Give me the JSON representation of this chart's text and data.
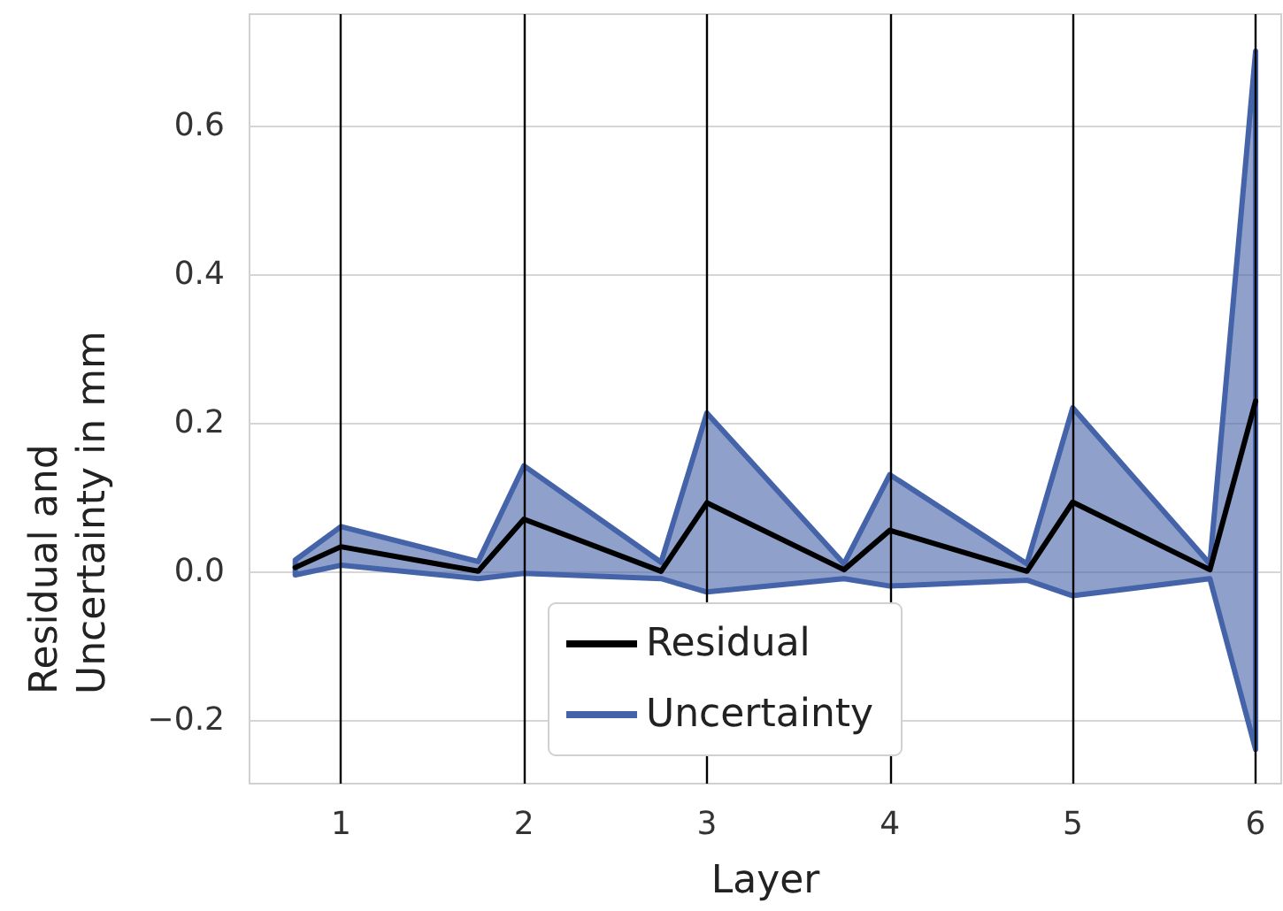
{
  "chart_data": {
    "type": "line",
    "xlabel": "Layer",
    "ylabel": "Residual and Uncertainty in mm",
    "x": [
      0.75,
      1,
      1.75,
      2,
      2.75,
      3,
      3.75,
      4,
      4.75,
      5,
      5.75,
      6
    ],
    "series": [
      {
        "name": "Residual",
        "color": "#000000",
        "values": [
          0.005,
          0.033,
          0.0,
          0.07,
          0.0,
          0.092,
          0.002,
          0.055,
          0.0,
          0.093,
          0.002,
          0.229
        ]
      },
      {
        "name": "Uncertainty",
        "type": "area",
        "color": "#4463a8",
        "values": [
          null,
          null,
          null,
          null,
          null,
          null,
          null,
          null,
          null,
          null,
          null,
          null
        ],
        "upper": [
          0.015,
          0.06,
          0.013,
          0.142,
          0.012,
          0.213,
          0.01,
          0.13,
          0.01,
          0.22,
          0.01,
          0.7
        ],
        "lower": [
          -0.005,
          0.008,
          -0.01,
          -0.003,
          -0.01,
          -0.028,
          -0.01,
          -0.02,
          -0.012,
          -0.033,
          -0.01,
          -0.24
        ]
      }
    ],
    "xlim": [
      0.5,
      6.14
    ],
    "xticks": [
      1,
      2,
      3,
      4,
      5,
      6
    ],
    "ylim": [
      -0.286,
      0.75
    ],
    "yticks": [
      {
        "value": -0.2,
        "label": "−0.2"
      },
      {
        "value": 0,
        "label": "0.0"
      },
      {
        "value": 0.2,
        "label": "0.2"
      },
      {
        "value": 0.4,
        "label": "0.4"
      },
      {
        "value": 0.6,
        "label": "0.6"
      }
    ],
    "ref_lines": [
      {
        "axis": "x",
        "value": 1,
        "color": "#000000"
      },
      {
        "axis": "x",
        "value": 2,
        "color": "#000000"
      },
      {
        "axis": "x",
        "value": 3,
        "color": "#000000"
      },
      {
        "axis": "x",
        "value": 4,
        "color": "#000000"
      },
      {
        "axis": "x",
        "value": 5,
        "color": "#000000"
      },
      {
        "axis": "x",
        "value": 6,
        "color": "#000000"
      }
    ],
    "grid": "y",
    "legend": "bottom",
    "marker": "none",
    "line_style": "solid"
  }
}
